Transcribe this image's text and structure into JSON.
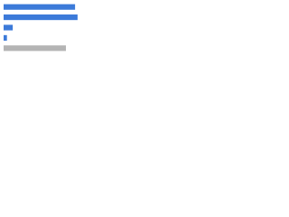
{
  "chart_data": {
    "type": "bar",
    "orientation": "horizontal",
    "categories": [
      null,
      null,
      null,
      null,
      null
    ],
    "values": [
      86,
      89,
      11,
      4,
      75
    ],
    "colors": [
      "#3c7ad9",
      "#3c7ad9",
      "#3c7ad9",
      "#3c7ad9",
      "#b4b4b4"
    ],
    "xlim": [
      0,
      100
    ]
  }
}
